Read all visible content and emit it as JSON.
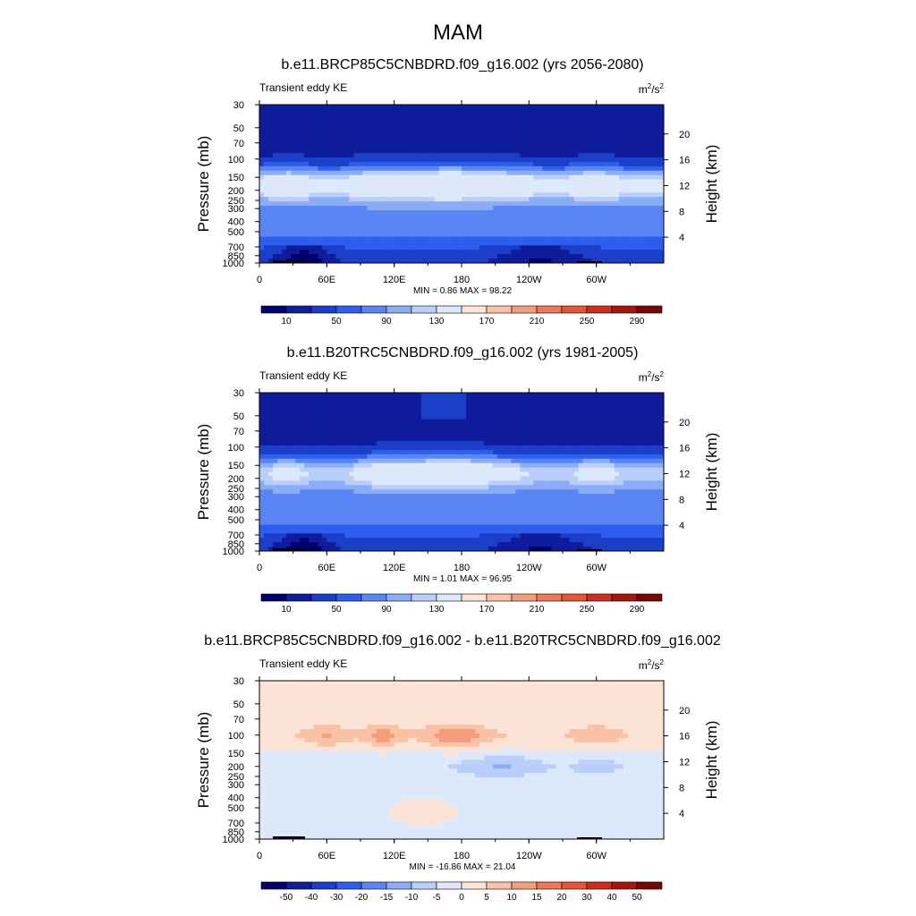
{
  "chart_data": {
    "type": "heatmap",
    "title": "MAM",
    "panels": [
      {
        "title": "b.e11.BRCP85C5CNBDRD.f09_g16.002 (yrs 2056-2080)",
        "left_label": "Transient eddy KE",
        "units_base": "m",
        "units_exp1": "2",
        "units_mid": "/s",
        "units_exp2": "2",
        "ylabel": "Pressure (mb)",
        "ylabel_right": "Height (km)",
        "min_max": "MIN =   0.86  MAX =  98.22",
        "min": 0.86,
        "max": 98.22,
        "colorbar_ticks": [
          "10",
          "50",
          "90",
          "130",
          "170",
          "210",
          "250",
          "290"
        ],
        "field": "full"
      },
      {
        "title": "b.e11.B20TRC5CNBDRD.f09_g16.002 (yrs 1981-2005)",
        "left_label": "Transient eddy KE",
        "units_base": "m",
        "units_exp1": "2",
        "units_mid": "/s",
        "units_exp2": "2",
        "ylabel": "Pressure (mb)",
        "ylabel_right": "Height (km)",
        "min_max": "MIN =   1.01  MAX =  96.95",
        "min": 1.01,
        "max": 96.95,
        "colorbar_ticks": [
          "10",
          "50",
          "90",
          "130",
          "170",
          "210",
          "250",
          "290"
        ],
        "field": "full"
      },
      {
        "title": "b.e11.BRCP85C5CNBDRD.f09_g16.002 - b.e11.B20TRC5CNBDRD.f09_g16.002",
        "left_label": "Transient eddy KE",
        "units_base": "m",
        "units_exp1": "2",
        "units_mid": "/s",
        "units_exp2": "2",
        "ylabel": "Pressure (mb)",
        "ylabel_right": "Height (km)",
        "min_max": "MIN = -16.86  MAX =  21.04",
        "min": -16.86,
        "max": 21.04,
        "colorbar_ticks": [
          "-50",
          "-40",
          "-30",
          "-20",
          "-15",
          "-10",
          "-5",
          "0",
          "5",
          "10",
          "15",
          "20",
          "30",
          "40",
          "50"
        ],
        "field": "diff"
      }
    ],
    "x_ticks": [
      "0",
      "60E",
      "120E",
      "180",
      "120W",
      "60W"
    ],
    "pressure_ticks": [
      "30",
      "50",
      "70",
      "100",
      "150",
      "200",
      "250",
      "300",
      "400",
      "500",
      "700",
      "850",
      "1000"
    ],
    "height_ticks": [
      "20",
      "16",
      "12",
      "8",
      "4"
    ],
    "colors": {
      "full_levels": [
        "#00006c",
        "#0f1d9c",
        "#1b3fc8",
        "#2e5ef0",
        "#5a86f5",
        "#8bacf7",
        "#b9cff9",
        "#dde8fb",
        "#fde3d5",
        "#f9c1a6",
        "#f49d7d",
        "#ee7757",
        "#e55536",
        "#cc2f1e",
        "#a8150f",
        "#7a0603"
      ],
      "diff_levels": [
        "#00006c",
        "#0f1d9c",
        "#1b3fc8",
        "#2e5ef0",
        "#5a86f5",
        "#8bacf7",
        "#b9cff9",
        "#dde8fb",
        "#fde3d5",
        "#f9c1a6",
        "#f49d7d",
        "#ee7757",
        "#e55536",
        "#cc2f1e",
        "#a8150f",
        "#7a0603"
      ]
    }
  }
}
